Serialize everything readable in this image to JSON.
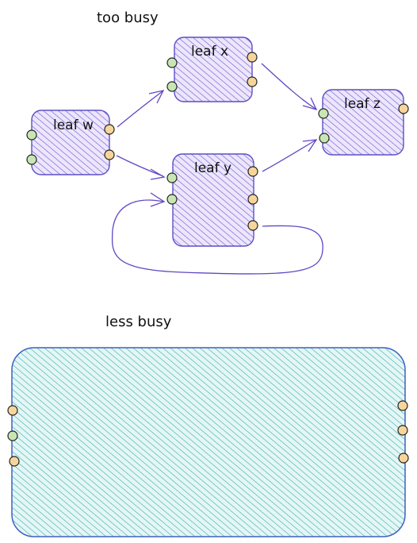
{
  "titles": {
    "top": "too busy",
    "bottom": "less busy"
  },
  "nodes": {
    "w": {
      "label": "leaf w"
    },
    "x": {
      "label": "leaf x"
    },
    "y": {
      "label": "leaf y"
    },
    "z": {
      "label": "leaf z"
    }
  },
  "colors": {
    "leaf_fill": "#d6c6f7",
    "leaf_stroke": "#5b4fc7",
    "big_fill": "#bfe7e6",
    "big_stroke": "#3f60c0",
    "port_green": "#c8e6b4",
    "port_orange": "#f6d59a",
    "port_stroke": "#222222",
    "edge": "#6247c4"
  }
}
